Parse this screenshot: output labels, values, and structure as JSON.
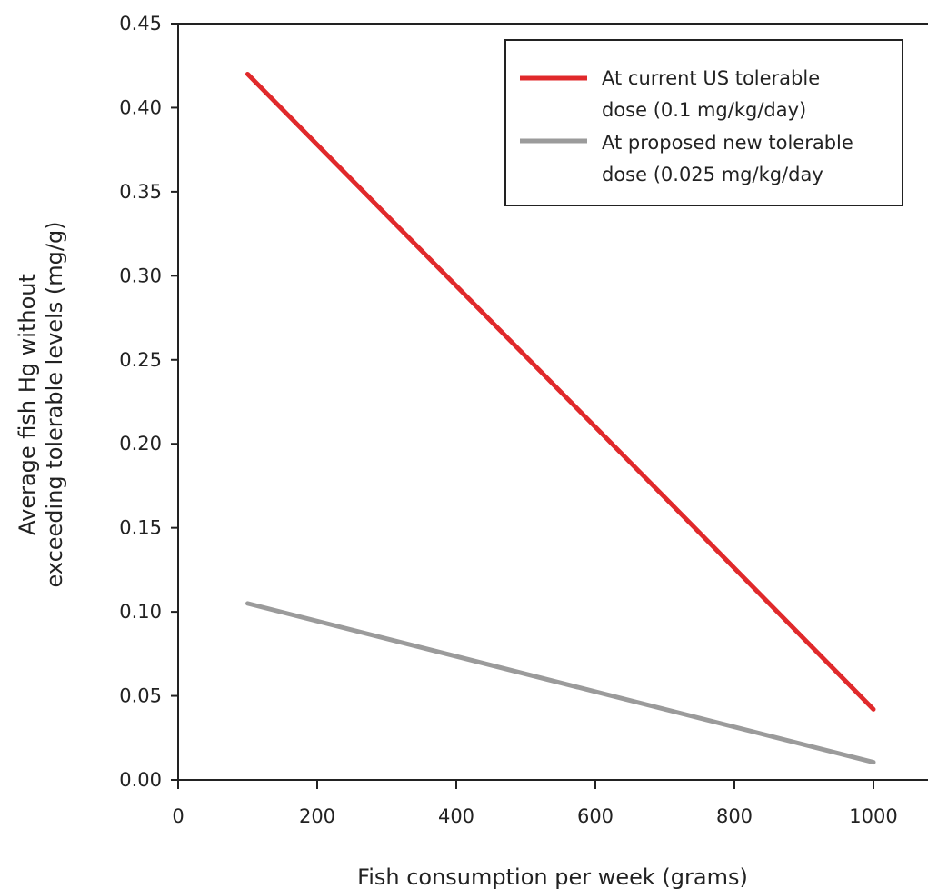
{
  "chart_data": {
    "type": "line",
    "title": "",
    "xlabel": "Fish consumption per week (grams)",
    "ylabel_lines": [
      "Average fish Hg without",
      "exceeding tolerable levels (mg/g)"
    ],
    "xlim": [
      0,
      1000
    ],
    "ylim": [
      0,
      0.45
    ],
    "xticks": [
      0,
      200,
      400,
      600,
      800,
      1000
    ],
    "yticks": [
      "0.00",
      "0.05",
      "0.10",
      "0.15",
      "0.20",
      "0.25",
      "0.30",
      "0.35",
      "0.40",
      "0.45"
    ],
    "grid": false,
    "legend_position": "top-right",
    "series": [
      {
        "name_lines": [
          "At current US tolerable",
          "dose (0.1 mg/kg/day)"
        ],
        "color": "#e0292b",
        "x": [
          100,
          1000
        ],
        "y": [
          0.42,
          0.042
        ]
      },
      {
        "name_lines": [
          "At proposed new tolerable",
          "dose (0.025 mg/kg/day"
        ],
        "color": "#9b9b9b",
        "x": [
          100,
          1000
        ],
        "y": [
          0.105,
          0.0105
        ]
      }
    ]
  }
}
